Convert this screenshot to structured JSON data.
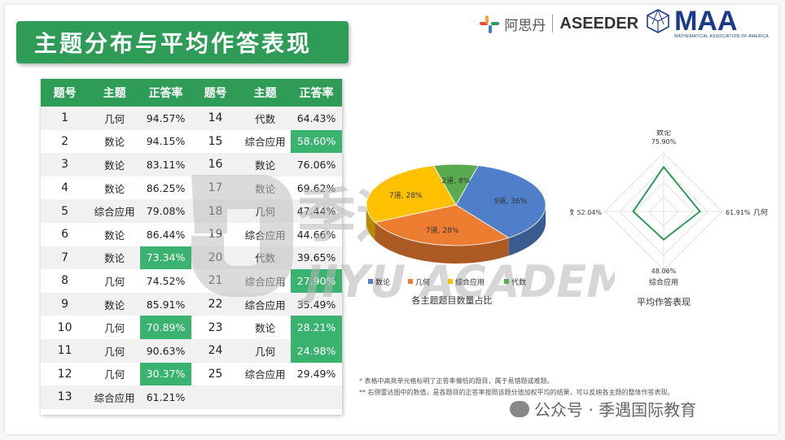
{
  "title": "主题分布与平均作答表现",
  "logos": {
    "asi": "阿思丹",
    "aseeder": "ASEEDER",
    "maa": "MAA",
    "maa_sub": "MATHEMATICAL ASSOCIATION OF AMERICA"
  },
  "table": {
    "headers": [
      "题号",
      "主题",
      "正答率",
      "题号",
      "主题",
      "正答率"
    ],
    "left": [
      {
        "no": "1",
        "topic": "几何",
        "rate": "94.57%",
        "hl": false
      },
      {
        "no": "2",
        "topic": "数论",
        "rate": "94.15%",
        "hl": false
      },
      {
        "no": "3",
        "topic": "数论",
        "rate": "83.11%",
        "hl": false
      },
      {
        "no": "4",
        "topic": "数论",
        "rate": "86.25%",
        "hl": false
      },
      {
        "no": "5",
        "topic": "综合应用",
        "rate": "79.08%",
        "hl": false
      },
      {
        "no": "6",
        "topic": "数论",
        "rate": "86.44%",
        "hl": false
      },
      {
        "no": "7",
        "topic": "数论",
        "rate": "73.34%",
        "hl": true
      },
      {
        "no": "8",
        "topic": "几何",
        "rate": "74.52%",
        "hl": false
      },
      {
        "no": "9",
        "topic": "数论",
        "rate": "85.91%",
        "hl": false
      },
      {
        "no": "10",
        "topic": "几何",
        "rate": "70.89%",
        "hl": true
      },
      {
        "no": "11",
        "topic": "几何",
        "rate": "90.63%",
        "hl": false
      },
      {
        "no": "12",
        "topic": "几何",
        "rate": "30.37%",
        "hl": true
      },
      {
        "no": "13",
        "topic": "综合应用",
        "rate": "61.21%",
        "hl": false
      }
    ],
    "right": [
      {
        "no": "14",
        "topic": "代数",
        "rate": "64.43%",
        "hl": false
      },
      {
        "no": "15",
        "topic": "综合应用",
        "rate": "58.60%",
        "hl": true
      },
      {
        "no": "16",
        "topic": "数论",
        "rate": "76.06%",
        "hl": false
      },
      {
        "no": "17",
        "topic": "数论",
        "rate": "69.62%",
        "hl": false
      },
      {
        "no": "18",
        "topic": "几何",
        "rate": "47.44%",
        "hl": false
      },
      {
        "no": "19",
        "topic": "综合应用",
        "rate": "44.66%",
        "hl": false
      },
      {
        "no": "20",
        "topic": "代数",
        "rate": "39.65%",
        "hl": false
      },
      {
        "no": "21",
        "topic": "综合应用",
        "rate": "27.90%",
        "hl": true
      },
      {
        "no": "22",
        "topic": "综合应用",
        "rate": "35.49%",
        "hl": false
      },
      {
        "no": "23",
        "topic": "数论",
        "rate": "28.21%",
        "hl": true
      },
      {
        "no": "24",
        "topic": "几何",
        "rate": "24.98%",
        "hl": true
      },
      {
        "no": "25",
        "topic": "综合应用",
        "rate": "29.49%",
        "hl": false
      },
      {
        "no": "",
        "topic": "",
        "rate": "",
        "hl": false
      }
    ]
  },
  "chart_data": [
    {
      "type": "pie",
      "title": "各主题题目数量占比",
      "slices": [
        {
          "name": "数论",
          "count": 9,
          "pct": 36,
          "label": "9道, 36%",
          "color": "#4f7fc8"
        },
        {
          "name": "几何",
          "count": 7,
          "pct": 28,
          "label": "7道, 28%",
          "color": "#ed7d31"
        },
        {
          "name": "综合应用",
          "count": 7,
          "pct": 28,
          "label": "7道, 28%",
          "color": "#ffc000"
        },
        {
          "name": "代数",
          "count": 2,
          "pct": 8,
          "label": "2道, 8%",
          "color": "#5aab4f"
        }
      ],
      "legend_position": "bottom"
    },
    {
      "type": "radar",
      "title": "平均作答表现",
      "axes": [
        {
          "name": "数论",
          "value": 75.9,
          "label": "75.90%"
        },
        {
          "name": "几何",
          "value": 61.91,
          "label": "61.91%"
        },
        {
          "name": "综合应用",
          "value": 48.06,
          "label": "48.06%"
        },
        {
          "name": "代数",
          "value": 52.04,
          "label": "52.04%"
        }
      ],
      "range": [
        0,
        100
      ],
      "color": "#2e9c57"
    }
  ],
  "footnotes": [
    "* 表格中高亮单元格标明了正答率偏低的题目，属于易错题或难题。",
    "** 右侧雷达图中的数值，是各题目的正答率按照该题分值加权平均的结果，可以反映各主题的整体作答表现。"
  ],
  "watermark": {
    "big_cn": "季遇教育",
    "big_en": "JIYU ACADEMY",
    "bottom": "公众号 · 季遇国际教育"
  }
}
